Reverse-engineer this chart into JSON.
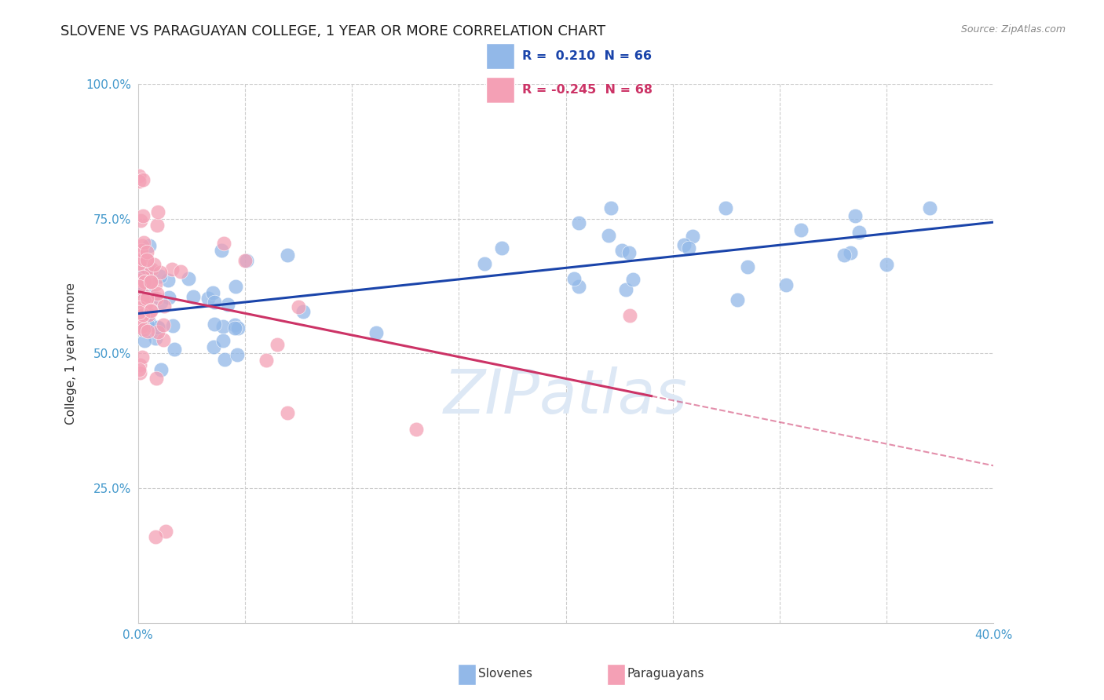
{
  "title": "SLOVENE VS PARAGUAYAN COLLEGE, 1 YEAR OR MORE CORRELATION CHART",
  "source": "Source: ZipAtlas.com",
  "ylabel": "College, 1 year or more",
  "xlim": [
    0.0,
    0.4
  ],
  "ylim": [
    0.0,
    1.0
  ],
  "legend_r_blue": "0.210",
  "legend_n_blue": "66",
  "legend_r_pink": "-0.245",
  "legend_n_pink": "68",
  "legend_label_blue": "Slovenes",
  "legend_label_pink": "Paraguayans",
  "blue_color": "#92b8e8",
  "pink_color": "#f4a0b5",
  "blue_line_color": "#1a44aa",
  "pink_line_color": "#cc3366",
  "grid_color": "#cccccc",
  "background_color": "#ffffff",
  "watermark_color": "#dde8f5",
  "title_fontsize": 13,
  "axis_label_fontsize": 11,
  "tick_fontsize": 11,
  "tick_color": "#4499cc"
}
